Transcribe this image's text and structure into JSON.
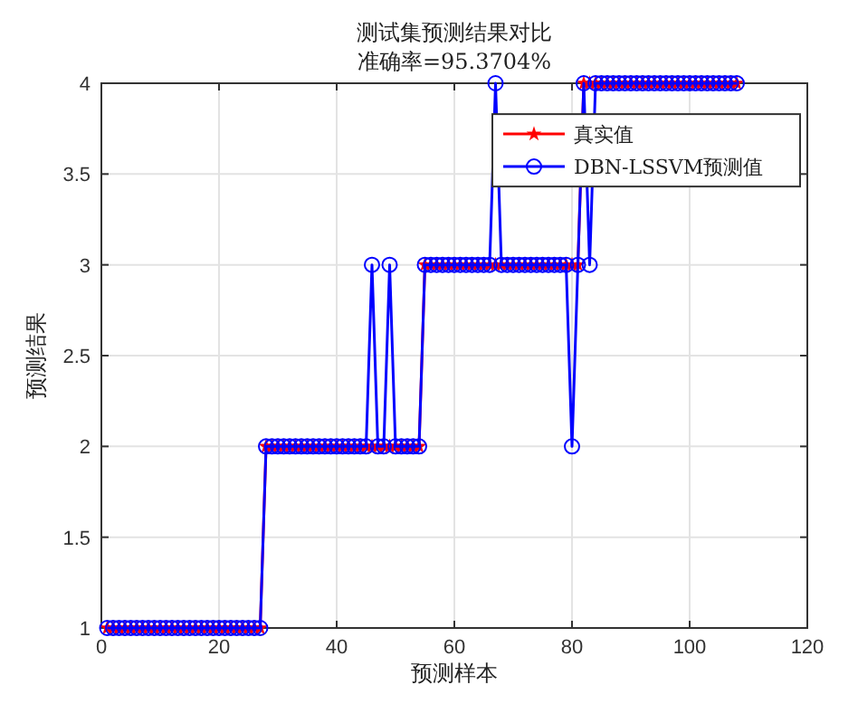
{
  "chart_data": {
    "type": "line",
    "title": "测试集预测结果对比",
    "subtitle": "准确率=95.3704%",
    "xlabel": "预测样本",
    "ylabel": "预测结果",
    "x": [
      1,
      2,
      3,
      4,
      5,
      6,
      7,
      8,
      9,
      10,
      11,
      12,
      13,
      14,
      15,
      16,
      17,
      18,
      19,
      20,
      21,
      22,
      23,
      24,
      25,
      26,
      27,
      28,
      29,
      30,
      31,
      32,
      33,
      34,
      35,
      36,
      37,
      38,
      39,
      40,
      41,
      42,
      43,
      44,
      45,
      46,
      47,
      48,
      49,
      50,
      51,
      52,
      53,
      54,
      55,
      56,
      57,
      58,
      59,
      60,
      61,
      62,
      63,
      64,
      65,
      66,
      67,
      68,
      69,
      70,
      71,
      72,
      73,
      74,
      75,
      76,
      77,
      78,
      79,
      80,
      81,
      82,
      83,
      84,
      85,
      86,
      87,
      88,
      89,
      90,
      91,
      92,
      93,
      94,
      95,
      96,
      97,
      98,
      99,
      100,
      101,
      102,
      103,
      104,
      105,
      106,
      107,
      108
    ],
    "series": [
      {
        "name": "真实值",
        "color": "#ff0000",
        "marker": "star",
        "values": [
          1,
          1,
          1,
          1,
          1,
          1,
          1,
          1,
          1,
          1,
          1,
          1,
          1,
          1,
          1,
          1,
          1,
          1,
          1,
          1,
          1,
          1,
          1,
          1,
          1,
          1,
          1,
          2,
          2,
          2,
          2,
          2,
          2,
          2,
          2,
          2,
          2,
          2,
          2,
          2,
          2,
          2,
          2,
          2,
          2,
          2,
          2,
          2,
          2,
          2,
          2,
          2,
          2,
          2,
          3,
          3,
          3,
          3,
          3,
          3,
          3,
          3,
          3,
          3,
          3,
          3,
          3,
          3,
          3,
          3,
          3,
          3,
          3,
          3,
          3,
          3,
          3,
          3,
          3,
          3,
          3,
          4,
          4,
          4,
          4,
          4,
          4,
          4,
          4,
          4,
          4,
          4,
          4,
          4,
          4,
          4,
          4,
          4,
          4,
          4,
          4,
          4,
          4,
          4,
          4,
          4,
          4,
          4
        ]
      },
      {
        "name": "DBN-LSSVM预测值",
        "color": "#0000ff",
        "marker": "circle",
        "values": [
          1,
          1,
          1,
          1,
          1,
          1,
          1,
          1,
          1,
          1,
          1,
          1,
          1,
          1,
          1,
          1,
          1,
          1,
          1,
          1,
          1,
          1,
          1,
          1,
          1,
          1,
          1,
          2,
          2,
          2,
          2,
          2,
          2,
          2,
          2,
          2,
          2,
          2,
          2,
          2,
          2,
          2,
          2,
          2,
          2,
          3,
          2,
          2,
          3,
          2,
          2,
          2,
          2,
          2,
          3,
          3,
          3,
          3,
          3,
          3,
          3,
          3,
          3,
          3,
          3,
          3,
          4,
          3,
          3,
          3,
          3,
          3,
          3,
          3,
          3,
          3,
          3,
          3,
          3,
          2,
          3,
          4,
          3,
          4,
          4,
          4,
          4,
          4,
          4,
          4,
          4,
          4,
          4,
          4,
          4,
          4,
          4,
          4,
          4,
          4,
          4,
          4,
          4,
          4,
          4,
          4,
          4,
          4
        ]
      }
    ],
    "xlim": [
      0,
      120
    ],
    "xticks": [
      0,
      20,
      40,
      60,
      80,
      100,
      120
    ],
    "ylim": [
      1,
      4
    ],
    "yticks": [
      1,
      1.5,
      2,
      2.5,
      3,
      3.5,
      4
    ],
    "grid": true,
    "legend": "top right",
    "line_style": "solid"
  }
}
